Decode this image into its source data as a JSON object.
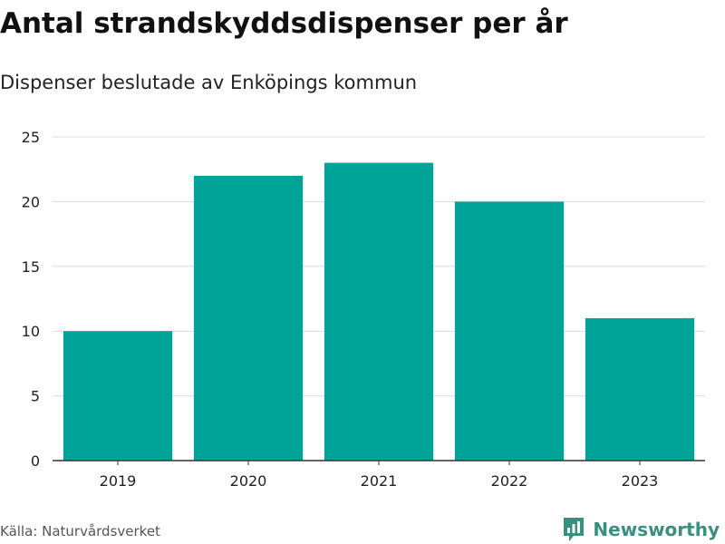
{
  "colors": {
    "bar": "#00a398",
    "grid": "#dcdcdc",
    "axis": "#333333",
    "brand": "#3a8f80"
  },
  "chart_data": {
    "type": "bar",
    "title": "Antal strandskyddsdispenser per år",
    "subtitle": "Dispenser beslutade av Enköpings kommun",
    "categories": [
      "2019",
      "2020",
      "2021",
      "2022",
      "2023"
    ],
    "values": [
      10,
      22,
      23,
      20,
      11
    ],
    "xlabel": "",
    "ylabel": "",
    "ylim": [
      0,
      25
    ],
    "yticks": [
      "0",
      "5",
      "10",
      "15",
      "20",
      "25"
    ],
    "grid": true
  },
  "footer": {
    "source": "Källa: Naturvårdsverket",
    "brand_name": "Newsworthy",
    "brand_icon": "bar-chart-logo-icon"
  }
}
